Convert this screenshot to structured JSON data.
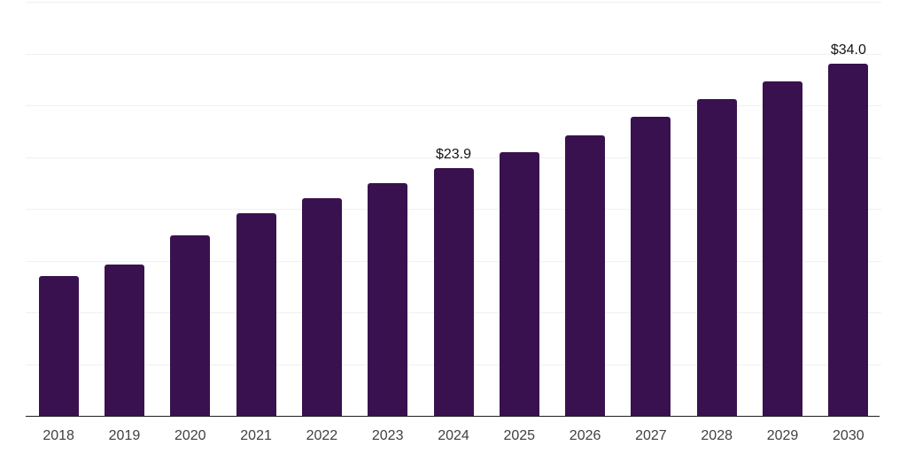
{
  "chart_data": {
    "type": "bar",
    "title": "",
    "xlabel": "",
    "ylabel": "",
    "categories": [
      "2018",
      "2019",
      "2020",
      "2021",
      "2022",
      "2023",
      "2024",
      "2025",
      "2026",
      "2027",
      "2028",
      "2029",
      "2030"
    ],
    "values": [
      13.5,
      14.6,
      17.4,
      19.6,
      21.0,
      22.5,
      23.9,
      25.5,
      27.1,
      28.9,
      30.6,
      32.3,
      34.0
    ],
    "data_labels": [
      null,
      null,
      null,
      null,
      null,
      null,
      "$23.9",
      null,
      null,
      null,
      null,
      null,
      "$34.0"
    ],
    "ylim": [
      0,
      40
    ],
    "gridline_step": 5,
    "grid": true,
    "legend": false,
    "y_axis_labels_visible": false,
    "colors": {
      "bar": "#3a114f",
      "gridline": "#f0f0f0",
      "axis_line": "#1f1f1f",
      "tick_label": "#3f3f3f",
      "data_label": "#141414",
      "background": "#ffffff"
    }
  }
}
